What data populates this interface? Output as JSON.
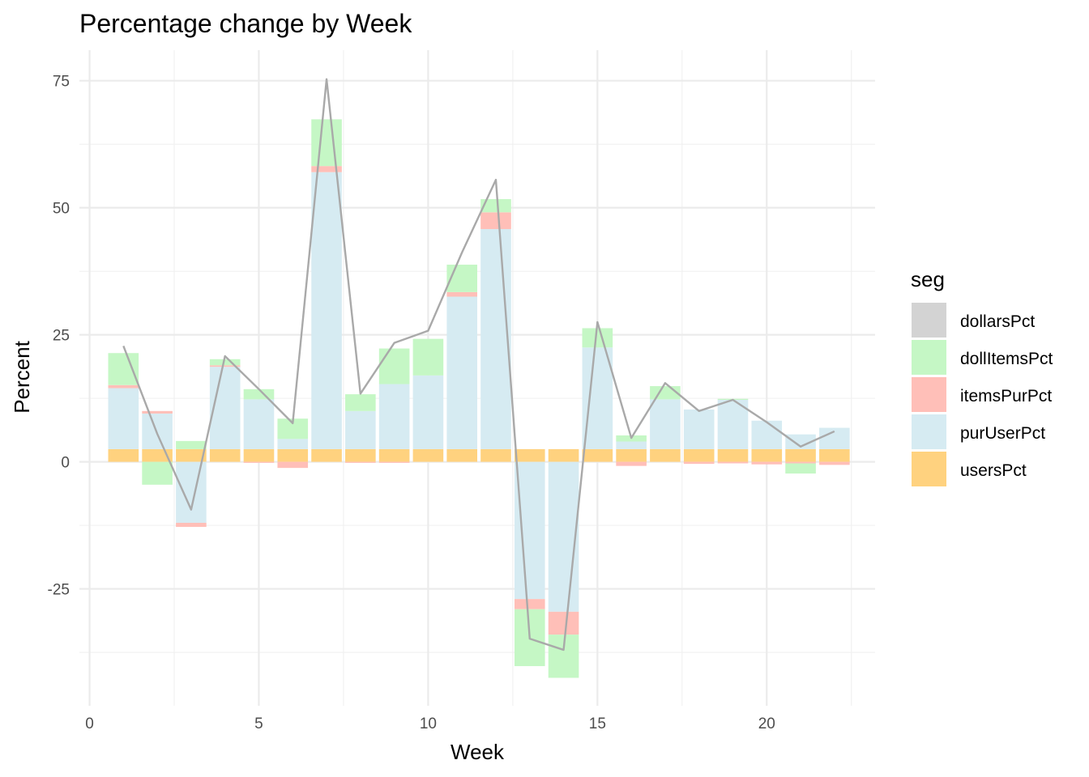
{
  "chart_data": {
    "type": "bar",
    "stacked": true,
    "title": "Percentage change by Week",
    "xlabel": "Week",
    "ylabel": "Percent",
    "xlim": [
      -0.3,
      23.2
    ],
    "ylim": [
      -48,
      81
    ],
    "x_ticks": [
      0,
      5,
      10,
      15,
      20
    ],
    "y_ticks": [
      -25,
      0,
      25,
      50,
      75
    ],
    "grid": true,
    "legend": {
      "title": "seg",
      "position": "right"
    },
    "weeks": [
      1,
      2,
      3,
      4,
      5,
      6,
      7,
      8,
      9,
      10,
      11,
      12,
      13,
      14,
      15,
      16,
      17,
      18,
      19,
      20,
      21,
      22
    ],
    "series": [
      {
        "name": "dollarsPct",
        "color": "#d3d3d3",
        "values": [
          0,
          0,
          0,
          0,
          0,
          0,
          0,
          0,
          0,
          0,
          0,
          0,
          0,
          0,
          0,
          0,
          0,
          0,
          0,
          0,
          0,
          0
        ]
      },
      {
        "name": "dollItemsPct",
        "color": "#c5f7c5",
        "values": [
          6.3,
          -4.5,
          1.6,
          1.2,
          2.0,
          4.0,
          9.2,
          3.3,
          7.0,
          7.2,
          5.4,
          2.6,
          -11.2,
          -8.5,
          3.8,
          1.2,
          2.6,
          0,
          0.2,
          0,
          -2.0,
          0
        ]
      },
      {
        "name": "itemsPurPct",
        "color": "#ffbfb8",
        "values": [
          0.6,
          0.5,
          -0.8,
          0.3,
          -0.2,
          -1.2,
          1.2,
          -0.2,
          -0.2,
          0,
          0.9,
          3.3,
          -2.0,
          -4.5,
          0,
          -0.8,
          0,
          -0.4,
          -0.3,
          -0.5,
          -0.3,
          -0.6
        ]
      },
      {
        "name": "purUserPct",
        "color": "#d6ebf2",
        "values": [
          12.0,
          7.0,
          -12.0,
          16.2,
          9.8,
          2.0,
          54.5,
          7.5,
          12.8,
          14.5,
          30.0,
          43.3,
          -27.0,
          -29.5,
          20.0,
          1.5,
          9.8,
          7.8,
          9.7,
          5.6,
          2.9,
          4.2
        ]
      },
      {
        "name": "usersPct",
        "color": "#ffd27f",
        "values": [
          2.5,
          2.5,
          2.5,
          2.5,
          2.5,
          2.5,
          2.5,
          2.5,
          2.5,
          2.5,
          2.5,
          2.5,
          2.5,
          2.5,
          2.5,
          2.5,
          2.5,
          2.5,
          2.5,
          2.5,
          2.5,
          2.5
        ]
      }
    ],
    "stack_order": [
      "usersPct",
      "purUserPct",
      "itemsPurPct",
      "dollItemsPct",
      "dollarsPct"
    ],
    "total_line": {
      "color": "#a9a9a9",
      "values": [
        22.8,
        5.5,
        -9.4,
        20.8,
        14.3,
        7.6,
        75.3,
        13.4,
        23.4,
        25.8,
        41.2,
        55.5,
        -34.8,
        -37.0,
        27.5,
        4.7,
        15.5,
        10.0,
        12.2,
        7.8,
        3.0,
        6.0
      ]
    }
  }
}
